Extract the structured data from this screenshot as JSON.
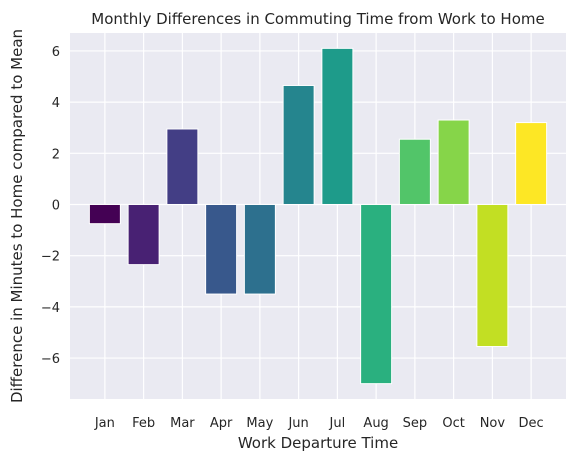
{
  "chart_data": {
    "type": "bar",
    "title": "Monthly Differences in Commuting Time from Work to Home",
    "xlabel": "Work Departure Time",
    "ylabel": "Difference in Minutes to Home compared to Mean",
    "categories": [
      "Jan",
      "Feb",
      "Mar",
      "Apr",
      "May",
      "Jun",
      "Jul",
      "Aug",
      "Sep",
      "Oct",
      "Nov",
      "Dec"
    ],
    "values": [
      -0.75,
      -2.35,
      2.95,
      -3.5,
      -3.5,
      4.65,
      6.1,
      -7.0,
      2.55,
      3.3,
      -5.55,
      3.2
    ],
    "colors": [
      "#440154",
      "#482173",
      "#433e85",
      "#38588c",
      "#2d708e",
      "#25858e",
      "#1e9b8a",
      "#2ab07f",
      "#52c569",
      "#86d549",
      "#c2df23",
      "#fde725"
    ],
    "ylim": [
      -7.6,
      6.7
    ],
    "yticks": [
      -6,
      -4,
      -2,
      0,
      2,
      4,
      6
    ],
    "ytick_labels": [
      "−6",
      "−4",
      "−2",
      "0",
      "2",
      "4",
      "6"
    ],
    "grid": true,
    "background": "#eaeaf2"
  }
}
